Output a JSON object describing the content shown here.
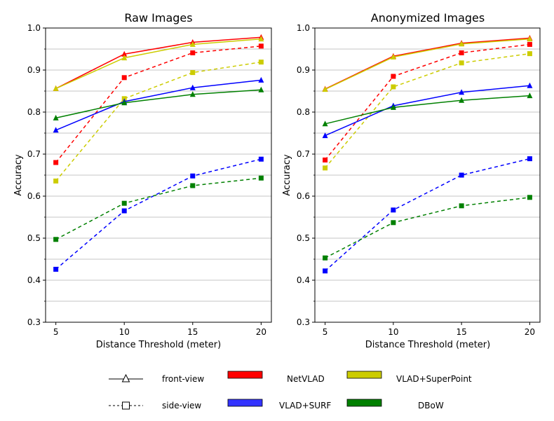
{
  "chart_data": [
    {
      "type": "line",
      "title": "Raw Images",
      "xlabel": "Distance Threshold (meter)",
      "ylabel": "Accuracy",
      "x": [
        5,
        10,
        15,
        20
      ],
      "xlim": [
        4.25,
        20.75
      ],
      "ylim": [
        0.3,
        1.0
      ],
      "xticks": [
        "5",
        "10",
        "15",
        "20"
      ],
      "yticks": [
        "0.3",
        "0.4",
        "0.5",
        "0.6",
        "0.7",
        "0.8",
        "0.9",
        "1.0"
      ],
      "grid": "horizontal",
      "series": [
        {
          "name": "NetVLAD front-view",
          "method": "NetVLAD",
          "view": "front-view",
          "values": [
            0.856,
            0.938,
            0.966,
            0.978
          ]
        },
        {
          "name": "VLAD+SuperPoint front-view",
          "method": "VLAD+SuperPoint",
          "view": "front-view",
          "values": [
            0.856,
            0.929,
            0.961,
            0.974
          ]
        },
        {
          "name": "NetVLAD side-view",
          "method": "NetVLAD",
          "view": "side-view",
          "values": [
            0.68,
            0.882,
            0.941,
            0.957
          ]
        },
        {
          "name": "VLAD+SuperPoint side-view",
          "method": "VLAD+SuperPoint",
          "view": "side-view",
          "values": [
            0.636,
            0.832,
            0.894,
            0.919
          ]
        },
        {
          "name": "VLAD+SURF front-view",
          "method": "VLAD+SURF",
          "view": "front-view",
          "values": [
            0.757,
            0.825,
            0.858,
            0.876
          ]
        },
        {
          "name": "DBoW front-view",
          "method": "DBoW",
          "view": "front-view",
          "values": [
            0.786,
            0.822,
            0.842,
            0.853
          ]
        },
        {
          "name": "VLAD+SURF side-view",
          "method": "VLAD+SURF",
          "view": "side-view",
          "values": [
            0.426,
            0.565,
            0.648,
            0.688
          ]
        },
        {
          "name": "DBoW side-view",
          "method": "DBoW",
          "view": "side-view",
          "values": [
            0.497,
            0.583,
            0.625,
            0.643
          ]
        }
      ]
    },
    {
      "type": "line",
      "title": "Anonymized Images",
      "xlabel": "Distance Threshold (meter)",
      "ylabel": "Accuracy",
      "x": [
        5,
        10,
        15,
        20
      ],
      "xlim": [
        4.25,
        20.75
      ],
      "ylim": [
        0.3,
        1.0
      ],
      "xticks": [
        "5",
        "10",
        "15",
        "20"
      ],
      "yticks": [
        "0.3",
        "0.4",
        "0.5",
        "0.6",
        "0.7",
        "0.8",
        "0.9",
        "1.0"
      ],
      "grid": "horizontal",
      "series": [
        {
          "name": "NetVLAD front-view",
          "method": "NetVLAD",
          "view": "front-view",
          "values": [
            0.855,
            0.933,
            0.964,
            0.976
          ]
        },
        {
          "name": "VLAD+SuperPoint front-view",
          "method": "VLAD+SuperPoint",
          "view": "front-view",
          "values": [
            0.854,
            0.931,
            0.962,
            0.974
          ]
        },
        {
          "name": "NetVLAD side-view",
          "method": "NetVLAD",
          "view": "side-view",
          "values": [
            0.686,
            0.885,
            0.941,
            0.961
          ]
        },
        {
          "name": "VLAD+SuperPoint side-view",
          "method": "VLAD+SuperPoint",
          "view": "side-view",
          "values": [
            0.667,
            0.86,
            0.917,
            0.939
          ]
        },
        {
          "name": "VLAD+SURF front-view",
          "method": "VLAD+SURF",
          "view": "front-view",
          "values": [
            0.744,
            0.815,
            0.847,
            0.863
          ]
        },
        {
          "name": "DBoW front-view",
          "method": "DBoW",
          "view": "front-view",
          "values": [
            0.772,
            0.811,
            0.828,
            0.839
          ]
        },
        {
          "name": "VLAD+SURF side-view",
          "method": "VLAD+SURF",
          "view": "side-view",
          "values": [
            0.422,
            0.567,
            0.65,
            0.689
          ]
        },
        {
          "name": "DBoW side-view",
          "method": "DBoW",
          "view": "side-view",
          "values": [
            0.453,
            0.537,
            0.577,
            0.597
          ]
        }
      ]
    }
  ],
  "colors": {
    "NetVLAD": "#ff0000",
    "VLAD+SuperPoint": "#cccc00",
    "VLAD+SURF": "#0000ff",
    "DBoW": "#008000",
    "grid": "#b0b0b0",
    "axis": "#000000"
  },
  "legend": {
    "placement": "bottom",
    "views": [
      {
        "label": "front-view",
        "line": "solid",
        "marker": "triangle"
      },
      {
        "label": "side-view",
        "line": "dashed",
        "marker": "square"
      }
    ],
    "methods": [
      {
        "label": "NetVLAD",
        "color": "#ff0000"
      },
      {
        "label": "VLAD+SuperPoint",
        "color": "#cccc00"
      },
      {
        "label": "VLAD+SURF",
        "color": "#3333ff"
      },
      {
        "label": "DBoW",
        "color": "#008000"
      }
    ]
  }
}
